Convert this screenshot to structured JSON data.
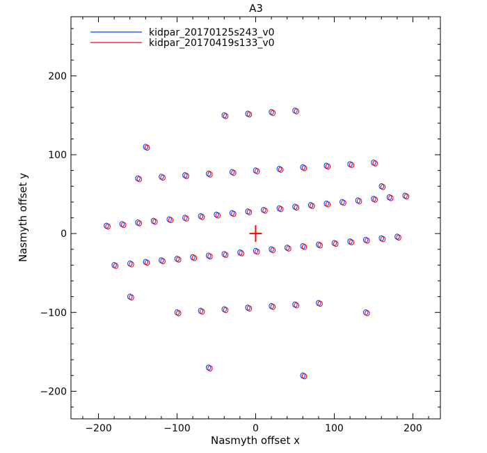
{
  "chart_data": {
    "type": "scatter",
    "title": "A3",
    "xlabel": "Nasmyth offset x",
    "ylabel": "Nasmyth offset y",
    "xlim": [
      -235,
      235
    ],
    "ylim": [
      -235,
      275
    ],
    "x_ticks": [
      -200,
      -100,
      0,
      100,
      200
    ],
    "x_tick_labels": [
      "−200",
      "−100",
      "0",
      "100",
      "200"
    ],
    "y_ticks": [
      -200,
      -100,
      0,
      100,
      200
    ],
    "y_tick_labels": [
      "−200",
      "−100",
      "0",
      "100",
      "200"
    ],
    "grid": false,
    "legend": "top-left",
    "marker": "small open contour (ellipse) per KID",
    "series": [
      {
        "name": "kidpar_20170125s243_v0",
        "color": "#0044ff",
        "x": [
          -190,
          -170,
          -150,
          -130,
          -110,
          -90,
          -70,
          -50,
          -30,
          -10,
          10,
          30,
          50,
          70,
          90,
          110,
          130,
          150,
          170,
          190,
          -180,
          -160,
          -140,
          -120,
          -100,
          -80,
          -60,
          -40,
          -20,
          0,
          20,
          40,
          60,
          80,
          100,
          120,
          140,
          160,
          180,
          -150,
          -120,
          -90,
          -60,
          -30,
          0,
          30,
          60,
          90,
          120,
          150,
          -100,
          -70,
          -40,
          -10,
          20,
          50,
          80,
          -40,
          -10,
          20,
          50,
          -160,
          160,
          -140,
          140,
          -60,
          60
        ],
        "y": [
          10,
          12,
          14,
          16,
          18,
          20,
          22,
          24,
          26,
          28,
          30,
          32,
          34,
          36,
          38,
          40,
          42,
          44,
          46,
          48,
          -40,
          -38,
          -36,
          -34,
          -32,
          -30,
          -28,
          -26,
          -24,
          -22,
          -20,
          -18,
          -16,
          -14,
          -12,
          -10,
          -8,
          -6,
          -4,
          70,
          72,
          74,
          76,
          78,
          80,
          82,
          84,
          86,
          88,
          90,
          -100,
          -98,
          -96,
          -94,
          -92,
          -90,
          -88,
          150,
          152,
          154,
          156,
          -80,
          60,
          110,
          -100,
          -170,
          -180
        ]
      },
      {
        "name": "kidpar_20170419s133_v0",
        "color": "#ff0000",
        "x": [
          -188,
          -168,
          -148,
          -128,
          -108,
          -88,
          -68,
          -48,
          -28,
          -8,
          12,
          32,
          52,
          72,
          92,
          112,
          132,
          152,
          172,
          192,
          -178,
          -158,
          -138,
          -118,
          -98,
          -78,
          -58,
          -38,
          -18,
          2,
          22,
          42,
          62,
          82,
          102,
          122,
          142,
          162,
          182,
          -148,
          -118,
          -88,
          -58,
          -28,
          2,
          32,
          62,
          92,
          122,
          152,
          -98,
          -68,
          -38,
          -8,
          22,
          52,
          82,
          -38,
          -8,
          22,
          52,
          -158,
          162,
          -138,
          142,
          -58,
          62
        ],
        "y": [
          9,
          11,
          13,
          15,
          17,
          19,
          21,
          23,
          25,
          27,
          29,
          31,
          33,
          35,
          37,
          39,
          41,
          43,
          45,
          47,
          -41,
          -39,
          -37,
          -35,
          -33,
          -31,
          -29,
          -27,
          -25,
          -23,
          -21,
          -19,
          -17,
          -15,
          -13,
          -11,
          -9,
          -7,
          -5,
          69,
          71,
          73,
          75,
          77,
          79,
          81,
          83,
          85,
          87,
          89,
          -101,
          -99,
          -97,
          -95,
          -93,
          -91,
          -89,
          149,
          151,
          153,
          155,
          -81,
          59,
          109,
          -101,
          -171,
          -181
        ]
      }
    ],
    "center_marker": {
      "x": 0,
      "y": 0,
      "symbol": "plus"
    }
  }
}
